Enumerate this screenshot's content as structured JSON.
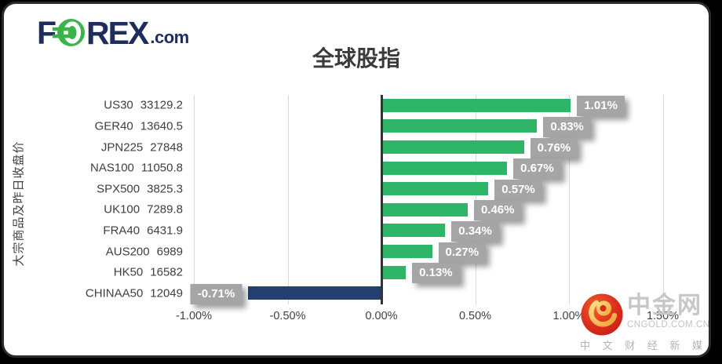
{
  "brand": {
    "name_f": "F",
    "name_rex": "REX",
    "name_suffix": ".com"
  },
  "chart_data": {
    "type": "bar",
    "orientation": "horizontal",
    "title": "全球股指",
    "ylabel": "大宗商品及昨日收盘价",
    "categories": [
      "US30",
      "GER40",
      "JPN225",
      "NAS100",
      "SPX500",
      "UK100",
      "FRA40",
      "AUS200",
      "HK50",
      "CHINAA50"
    ],
    "close_prices": [
      "33129.2",
      "13640.5",
      "27848",
      "11050.8",
      "3825.3",
      "7289.8",
      "6431.9",
      "6989",
      "16582",
      "12049"
    ],
    "values": [
      1.01,
      0.83,
      0.76,
      0.67,
      0.57,
      0.46,
      0.34,
      0.27,
      0.13,
      -0.71
    ],
    "labels": [
      "1.01%",
      "0.83%",
      "0.76%",
      "0.67%",
      "0.57%",
      "0.46%",
      "0.34%",
      "0.27%",
      "0.13%",
      "-0.71%"
    ],
    "x_ticks": [
      "-1.00%",
      "-0.50%",
      "0.00%",
      "0.50%",
      "1.00%",
      "1.50%"
    ],
    "x_tick_values": [
      -1.0,
      -0.5,
      0.0,
      0.5,
      1.0,
      1.5
    ],
    "xlim": [
      -1.03,
      1.62
    ],
    "grid": true,
    "legend": "none",
    "colors": {
      "positive_bar": "#2eb567",
      "negative_bar": "#23406f",
      "label_box": "#a5a5a5",
      "label_text": "#ffffff",
      "gridline": "#d9d9d9",
      "zero_line": "#333333",
      "text": "#3f3f3f"
    }
  },
  "watermark": {
    "site_name": "中金网",
    "site_domain": "CNGOLD.COM.CN",
    "tagline": "中 文 财 经 新 媒 体"
  }
}
